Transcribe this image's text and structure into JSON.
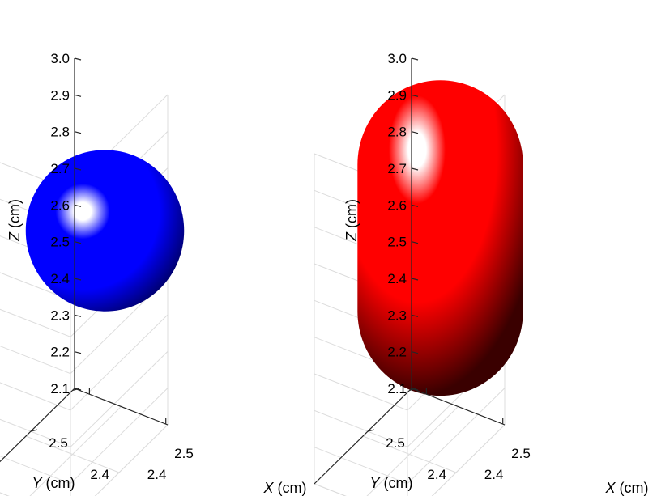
{
  "chart_data": [
    {
      "type": "surface",
      "shape": "sphere",
      "color": "#0000ff",
      "xlabel": {
        "var": "X",
        "unit": " (cm)"
      },
      "ylabel": {
        "var": "Y",
        "unit": " (cm)"
      },
      "zlabel": {
        "var": "Z",
        "unit": " (cm)"
      },
      "zticks": [
        2.1,
        2.2,
        2.3,
        2.4,
        2.5,
        2.6,
        2.7,
        2.8,
        2.9,
        3.0
      ],
      "ztick_labels": [
        "2.1",
        "2.2",
        "2.3",
        "2.4",
        "2.5",
        "2.6",
        "2.7",
        "2.8",
        "2.9",
        "3.0"
      ],
      "xticks": [
        2.4,
        2.5
      ],
      "xtick_labels": [
        "2.4",
        "2.5"
      ],
      "yticks": [
        2.4,
        2.5
      ],
      "ytick_labels": [
        "2.4",
        "2.5"
      ],
      "zlim": [
        2.1,
        3.0
      ],
      "center": {
        "x": 2.5,
        "y": 2.5,
        "z": 2.53
      },
      "radius": 0.22,
      "half_length": 0,
      "grid": true
    },
    {
      "type": "surface",
      "shape": "capsule",
      "color": "#ff0000",
      "xlabel": {
        "var": "X",
        "unit": " (cm)"
      },
      "ylabel": {
        "var": "Y",
        "unit": " (cm)"
      },
      "zlabel": {
        "var": "Z",
        "unit": " (cm)"
      },
      "zticks": [
        2.1,
        2.2,
        2.3,
        2.4,
        2.5,
        2.6,
        2.7,
        2.8,
        2.9,
        3.0
      ],
      "ztick_labels": [
        "2.1",
        "2.2",
        "2.3",
        "2.4",
        "2.5",
        "2.6",
        "2.7",
        "2.8",
        "2.9",
        "3.0"
      ],
      "xticks": [
        2.4,
        2.5
      ],
      "xtick_labels": [
        "2.4",
        "2.5"
      ],
      "yticks": [
        2.4,
        2.5
      ],
      "ytick_labels": [
        "2.4",
        "2.5"
      ],
      "zlim": [
        2.1,
        3.0
      ],
      "center": {
        "x": 2.5,
        "y": 2.5,
        "z": 2.51
      },
      "radius": 0.23,
      "half_length": 0.2,
      "grid": true
    }
  ]
}
